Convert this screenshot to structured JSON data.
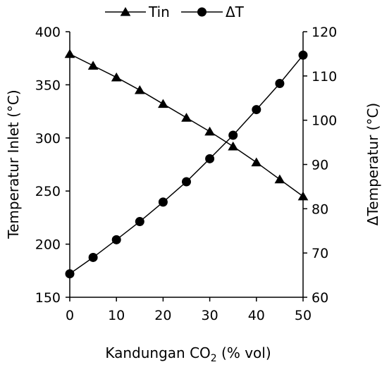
{
  "chart_data": {
    "type": "line",
    "x": [
      0,
      5,
      10,
      15,
      20,
      25,
      30,
      35,
      40,
      45,
      50
    ],
    "xlabel_main": "Kandungan CO",
    "xlabel_sub": "2",
    "xlabel_tail": " (% vol)",
    "ylabel_left": "Temperatur Inlet (°C)",
    "ylabel_right": "ΔTemperatur (°C)",
    "xlim": [
      0,
      50
    ],
    "ylim_left": [
      150,
      400
    ],
    "ylim_right": [
      60,
      120
    ],
    "xticks": [
      0,
      10,
      20,
      30,
      40,
      50
    ],
    "yticks_left": [
      150,
      200,
      250,
      300,
      350,
      400
    ],
    "yticks_right": [
      60,
      70,
      80,
      90,
      100,
      110,
      120
    ],
    "grid": false,
    "legend_position": "top",
    "series": [
      {
        "name": "Tin",
        "axis": "left",
        "marker": "triangle",
        "color": "#000000",
        "values": [
          379,
          368,
          357,
          345,
          332,
          319,
          306,
          292,
          277,
          261,
          245
        ]
      },
      {
        "name": "ΔT",
        "axis": "right",
        "marker": "circle",
        "color": "#000000",
        "values": [
          65.3,
          69.0,
          73.0,
          77.1,
          81.5,
          86.1,
          91.3,
          96.6,
          102.4,
          108.3,
          114.7
        ]
      }
    ]
  }
}
